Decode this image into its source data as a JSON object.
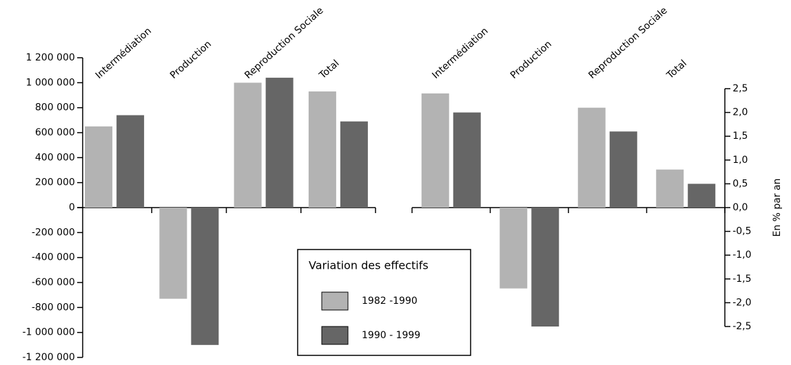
{
  "chart_data": [
    {
      "type": "bar",
      "legend_title": "Variation des effectifs",
      "categories": [
        "Intermédiation",
        "Production",
        "Reproduction Sociale",
        "Total"
      ],
      "series": [
        {
          "name": "1982 -1990",
          "color": "#b3b3b3",
          "values": [
            650000,
            -730000,
            1000000,
            930000
          ]
        },
        {
          "name": "1990 - 1999",
          "color": "#666666",
          "values": [
            740000,
            -1100000,
            1040000,
            690000
          ]
        }
      ],
      "ylim": [
        -1200000,
        1200000
      ],
      "yticks": [
        {
          "value": -1200000,
          "label": "-1 200 000"
        },
        {
          "value": -1000000,
          "label": "-1 000 000"
        },
        {
          "value": -800000,
          "label": "-800 000"
        },
        {
          "value": -600000,
          "label": "-600 000"
        },
        {
          "value": -400000,
          "label": "-400 000"
        },
        {
          "value": -200000,
          "label": "-200 000"
        },
        0,
        {
          "value": 200000,
          "label": "200 000"
        },
        {
          "value": 400000,
          "label": "400 000"
        },
        {
          "value": 600000,
          "label": "600 000"
        },
        {
          "value": 800000,
          "label": "800 000"
        },
        {
          "value": 1000000,
          "label": "1 000 000"
        },
        {
          "value": 1200000,
          "label": "1 200 000"
        }
      ]
    },
    {
      "type": "bar",
      "categories": [
        "Intermédiation",
        "Production",
        "Reproduction Sociale",
        "Total"
      ],
      "series": [
        {
          "color": "#b3b3b3",
          "values": [
            2.4,
            -1.7,
            2.1,
            0.8
          ]
        },
        {
          "color": "#666666",
          "values": [
            2.0,
            -2.5,
            1.6,
            0.5
          ]
        }
      ],
      "y2label": "En % par an",
      "y2lim": [
        -2.5,
        2.5
      ],
      "y2ticks": [
        {
          "value": -2.5,
          "label": "-2,5"
        },
        {
          "value": -2.0,
          "label": "-2,0"
        },
        {
          "value": -1.5,
          "label": "-1,5"
        },
        {
          "value": -1.0,
          "label": "-1,0"
        },
        {
          "value": -0.5,
          "label": "-0,5"
        },
        {
          "value": 0,
          "label": "0,0"
        },
        {
          "value": 0.5,
          "label": "0,5"
        },
        {
          "value": 1.0,
          "label": "1,0"
        },
        {
          "value": 1.5,
          "label": "1,5"
        },
        {
          "value": 2.0,
          "label": "2,0"
        },
        {
          "value": 2.5,
          "label": "2,5"
        }
      ]
    }
  ]
}
